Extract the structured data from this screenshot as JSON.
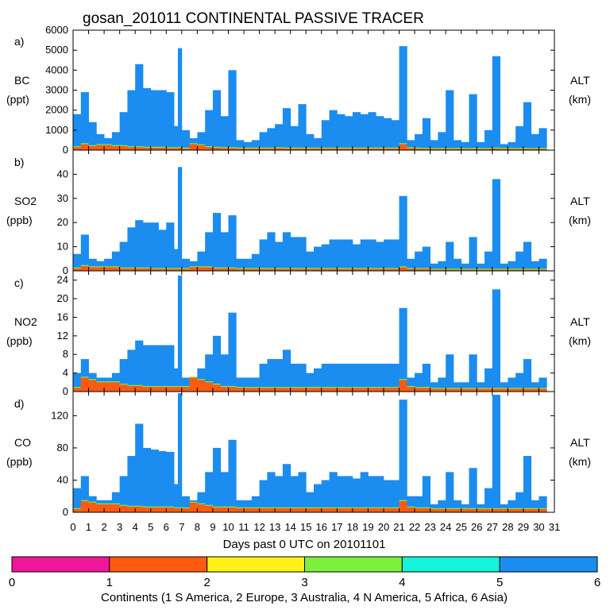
{
  "chart_data": {
    "type": "bar",
    "title": "gosan_201011 CONTINENTAL PASSIVE TRACER",
    "xlabel": "Days past 0 UTC on 20101101",
    "xlim": [
      0,
      31
    ],
    "x_ticks": [
      "0",
      "1",
      "2",
      "3",
      "4",
      "5",
      "6",
      "7",
      "8",
      "9",
      "10",
      "11",
      "12",
      "13",
      "14",
      "15",
      "16",
      "17",
      "18",
      "19",
      "20",
      "21",
      "22",
      "23",
      "24",
      "25",
      "26",
      "27",
      "28",
      "29",
      "30",
      "31"
    ],
    "right_label": [
      "ALT",
      "(km)"
    ],
    "panels": [
      {
        "letter": "a)",
        "label": [
          "BC",
          "(ppt)"
        ],
        "ylim": [
          0,
          6000
        ],
        "yticks": [
          "0",
          "1000",
          "2000",
          "3000",
          "4000",
          "5000",
          "6000"
        ],
        "x": [
          0.0,
          0.5,
          1.0,
          1.5,
          2.0,
          2.5,
          3.0,
          3.5,
          4.0,
          4.5,
          5.0,
          5.5,
          6.0,
          6.5,
          6.75,
          7.0,
          7.5,
          8.0,
          8.5,
          9.0,
          9.5,
          10.0,
          10.5,
          11.0,
          11.5,
          12.0,
          12.5,
          13.0,
          13.5,
          14.0,
          14.5,
          15.0,
          15.5,
          16.0,
          16.5,
          17.0,
          17.5,
          18.0,
          18.5,
          19.0,
          19.5,
          20.0,
          20.5,
          21.0,
          21.5,
          22.0,
          22.5,
          23.0,
          23.5,
          24.0,
          24.5,
          25.0,
          25.5,
          26.0,
          26.5,
          27.0,
          27.5,
          28.0,
          28.5,
          29.0,
          29.5,
          30.0
        ],
        "total": [
          1800,
          2900,
          1400,
          800,
          600,
          900,
          1900,
          3000,
          4300,
          3100,
          3000,
          3000,
          2900,
          1200,
          5100,
          1000,
          600,
          900,
          2000,
          3000,
          1700,
          4000,
          500,
          400,
          500,
          900,
          1100,
          1300,
          2100,
          1200,
          2300,
          800,
          600,
          1500,
          2000,
          1800,
          1700,
          1900,
          1800,
          1900,
          1700,
          1600,
          1500,
          5200,
          500,
          800,
          1600,
          500,
          900,
          3000,
          500,
          400,
          2800,
          400,
          1000,
          4700,
          300,
          400,
          1200,
          2400,
          800,
          1100
        ],
        "europe": [
          150,
          300,
          200,
          250,
          250,
          200,
          200,
          150,
          150,
          120,
          120,
          120,
          100,
          100,
          120,
          80,
          300,
          250,
          150,
          120,
          100,
          100,
          80,
          80,
          80,
          80,
          80,
          100,
          80,
          80,
          80,
          80,
          80,
          80,
          80,
          80,
          80,
          80,
          80,
          80,
          80,
          80,
          80,
          300,
          100,
          80,
          60,
          60,
          60,
          60,
          60,
          60,
          60,
          60,
          60,
          80,
          60,
          60,
          60,
          60,
          60,
          60
        ]
      },
      {
        "letter": "b)",
        "label": [
          "SO2",
          "(ppb)"
        ],
        "ylim": [
          0,
          50
        ],
        "yticks": [
          "0",
          "10",
          "20",
          "30",
          "40"
        ],
        "x": [
          0.0,
          0.5,
          1.0,
          1.5,
          2.0,
          2.5,
          3.0,
          3.5,
          4.0,
          4.5,
          5.0,
          5.5,
          6.0,
          6.5,
          6.75,
          7.0,
          7.5,
          8.0,
          8.5,
          9.0,
          9.5,
          10.0,
          10.5,
          11.0,
          11.5,
          12.0,
          12.5,
          13.0,
          13.5,
          14.0,
          14.5,
          15.0,
          15.5,
          16.0,
          16.5,
          17.0,
          17.5,
          18.0,
          18.5,
          19.0,
          19.5,
          20.0,
          20.5,
          21.0,
          21.5,
          22.0,
          22.5,
          23.0,
          23.5,
          24.0,
          24.5,
          25.0,
          25.5,
          26.0,
          26.5,
          27.0,
          27.5,
          28.0,
          28.5,
          29.0,
          29.5,
          30.0
        ],
        "total": [
          7,
          15,
          5,
          4,
          5,
          8,
          12,
          18,
          21,
          20,
          20,
          17,
          20,
          9,
          43,
          5,
          4,
          8,
          16,
          24,
          16,
          23,
          5,
          5,
          7,
          13,
          16,
          12,
          16,
          14,
          14,
          8,
          10,
          11,
          13,
          13,
          13,
          11,
          13,
          13,
          12,
          13,
          13,
          31,
          5,
          8,
          10,
          3,
          4,
          12,
          5,
          3,
          14,
          3,
          8,
          38,
          3,
          4,
          8,
          12,
          4,
          5
        ],
        "europe": [
          1,
          2,
          1.5,
          1.5,
          1.5,
          1.5,
          1,
          1,
          1,
          1,
          0.8,
          0.8,
          0.8,
          0.8,
          0.8,
          0.8,
          1.5,
          1.5,
          1.5,
          1,
          1,
          1,
          0.8,
          0.8,
          0.8,
          0.8,
          0.8,
          0.8,
          0.8,
          0.8,
          0.8,
          0.8,
          0.8,
          0.8,
          0.8,
          0.8,
          0.8,
          0.8,
          0.8,
          0.8,
          0.8,
          0.8,
          0.8,
          1.5,
          0.8,
          0.8,
          0.8,
          0.5,
          0.5,
          0.5,
          0.5,
          0.5,
          0.5,
          0.5,
          0.5,
          0.5,
          0.5,
          0.5,
          0.5,
          0.5,
          0.5,
          0.5
        ]
      },
      {
        "letter": "c)",
        "label": [
          "NO2",
          "(ppb)"
        ],
        "ylim": [
          0,
          26
        ],
        "yticks": [
          "0",
          "4",
          "8",
          "12",
          "16",
          "20",
          "24"
        ],
        "x": [
          0.0,
          0.5,
          1.0,
          1.5,
          2.0,
          2.5,
          3.0,
          3.5,
          4.0,
          4.5,
          5.0,
          5.5,
          6.0,
          6.5,
          6.75,
          7.0,
          7.5,
          8.0,
          8.5,
          9.0,
          9.5,
          10.0,
          10.5,
          11.0,
          11.5,
          12.0,
          12.5,
          13.0,
          13.5,
          14.0,
          14.5,
          15.0,
          15.5,
          16.0,
          16.5,
          17.0,
          17.5,
          18.0,
          18.5,
          19.0,
          19.5,
          20.0,
          20.5,
          21.0,
          21.5,
          22.0,
          22.5,
          23.0,
          23.5,
          24.0,
          24.5,
          25.0,
          25.5,
          26.0,
          26.5,
          27.0,
          27.5,
          28.0,
          28.5,
          29.0,
          29.5,
          30.0
        ],
        "total": [
          4,
          7,
          4,
          3,
          3,
          4,
          7,
          9,
          11,
          10,
          10,
          10,
          10,
          5,
          25,
          3,
          3,
          5,
          8,
          12,
          8,
          17,
          3,
          3,
          3,
          6,
          7,
          7,
          9,
          6,
          6,
          4,
          5,
          6,
          6,
          6,
          6,
          6,
          6,
          6,
          6,
          6,
          6,
          18,
          3,
          4,
          6,
          2,
          3,
          8,
          2,
          2,
          8,
          2,
          5,
          22,
          2,
          3,
          4,
          7,
          2,
          3
        ],
        "europe": [
          0.8,
          3,
          2.5,
          2,
          2,
          2,
          1.5,
          1.2,
          1.2,
          1,
          1,
          1,
          1,
          1,
          1,
          1,
          3,
          2.5,
          2,
          1.5,
          1,
          1,
          0.8,
          0.8,
          0.8,
          0.8,
          0.8,
          0.8,
          0.8,
          0.8,
          0.8,
          0.8,
          0.8,
          0.8,
          0.8,
          0.8,
          0.8,
          0.8,
          0.8,
          0.8,
          0.8,
          0.8,
          0.8,
          2.5,
          1,
          0.8,
          0.8,
          0.6,
          0.6,
          0.6,
          0.6,
          0.6,
          0.6,
          0.6,
          0.6,
          0.6,
          0.6,
          0.6,
          0.6,
          0.6,
          0.6,
          0.6
        ]
      },
      {
        "letter": "d)",
        "label": [
          "CO",
          "(ppb)"
        ],
        "ylim": [
          0,
          150
        ],
        "yticks": [
          "0",
          "40",
          "80",
          "120"
        ],
        "x": [
          0.0,
          0.5,
          1.0,
          1.5,
          2.0,
          2.5,
          3.0,
          3.5,
          4.0,
          4.5,
          5.0,
          5.5,
          6.0,
          6.5,
          6.75,
          7.0,
          7.5,
          8.0,
          8.5,
          9.0,
          9.5,
          10.0,
          10.5,
          11.0,
          11.5,
          12.0,
          12.5,
          13.0,
          13.5,
          14.0,
          14.5,
          15.0,
          15.5,
          16.0,
          16.5,
          17.0,
          17.5,
          18.0,
          18.5,
          19.0,
          19.5,
          20.0,
          20.5,
          21.0,
          21.5,
          22.0,
          22.5,
          23.0,
          23.5,
          24.0,
          24.5,
          25.0,
          25.5,
          26.0,
          26.5,
          27.0,
          27.5,
          28.0,
          28.5,
          29.0,
          29.5,
          30.0
        ],
        "total": [
          30,
          45,
          20,
          15,
          15,
          25,
          45,
          70,
          110,
          80,
          78,
          76,
          75,
          35,
          148,
          20,
          15,
          25,
          50,
          80,
          50,
          90,
          15,
          15,
          20,
          40,
          50,
          45,
          60,
          45,
          50,
          25,
          35,
          40,
          50,
          45,
          45,
          42,
          50,
          45,
          45,
          40,
          40,
          140,
          20,
          20,
          45,
          10,
          15,
          50,
          15,
          10,
          55,
          10,
          30,
          146,
          10,
          15,
          25,
          70,
          15,
          20
        ],
        "europe": [
          4,
          14,
          12,
          10,
          10,
          10,
          8,
          7,
          7,
          6,
          6,
          6,
          6,
          5,
          5,
          5,
          12,
          10,
          8,
          6,
          6,
          6,
          5,
          5,
          5,
          5,
          5,
          5,
          5,
          5,
          5,
          5,
          5,
          5,
          5,
          5,
          5,
          5,
          5,
          5,
          5,
          5,
          5,
          14,
          6,
          5,
          5,
          4,
          4,
          4,
          4,
          4,
          4,
          4,
          4,
          4,
          4,
          4,
          4,
          4,
          4,
          4
        ]
      }
    ],
    "colorbar": {
      "ticks": [
        "0",
        "1",
        "2",
        "3",
        "4",
        "5",
        "6"
      ],
      "colors": [
        "#f0169a",
        "#ff5a10",
        "#fff214",
        "#7cf03c",
        "#12f5d8",
        "#1b8cf0"
      ],
      "label": "Continents (1 S America, 2 Europe, 3 Australia, 4 N America, 5 Africa, 6 Asia)"
    }
  }
}
